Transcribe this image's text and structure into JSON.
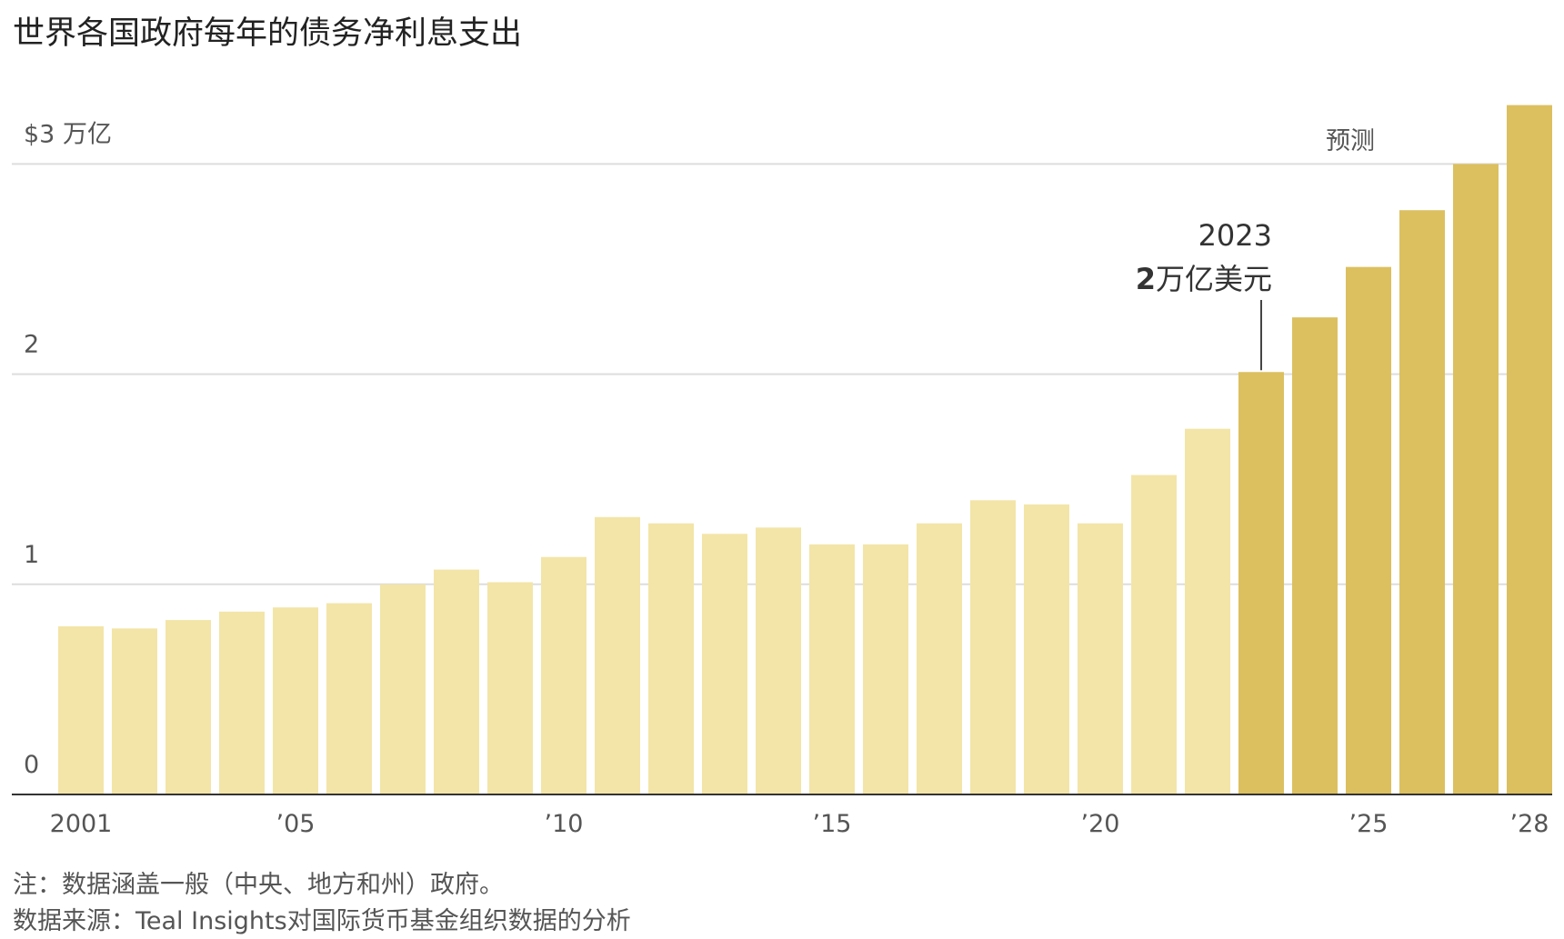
{
  "chart_data": {
    "type": "bar",
    "title": "世界各国政府每年的债务净利息支出",
    "categories": [
      "2001",
      null,
      null,
      null,
      "’05",
      null,
      null,
      null,
      null,
      "’10",
      null,
      null,
      null,
      null,
      "’15",
      null,
      null,
      null,
      null,
      "’20",
      null,
      null,
      null,
      null,
      "’25",
      null,
      null,
      "’28"
    ],
    "values": [
      0.8,
      0.79,
      0.83,
      0.87,
      0.89,
      0.91,
      1.0,
      1.07,
      1.01,
      1.13,
      1.32,
      1.29,
      1.24,
      1.27,
      1.19,
      1.19,
      1.29,
      1.4,
      1.38,
      1.29,
      1.52,
      1.74,
      2.01,
      2.27,
      2.51,
      2.78,
      3.0,
      3.28
    ],
    "colors": [
      "#f3e5a8",
      "#f3e5a8",
      "#f3e5a8",
      "#f3e5a8",
      "#f3e5a8",
      "#f3e5a8",
      "#f3e5a8",
      "#f3e5a8",
      "#f3e5a8",
      "#f3e5a8",
      "#f3e5a8",
      "#f3e5a8",
      "#f3e5a8",
      "#f3e5a8",
      "#f3e5a8",
      "#f3e5a8",
      "#f3e5a8",
      "#f3e5a8",
      "#f3e5a8",
      "#f3e5a8",
      "#f3e5a8",
      "#f3e5a8",
      "#dcc060",
      "#dcc060",
      "#dcc060",
      "#dcc060",
      "#dcc060",
      "#dcc060"
    ],
    "ylim": [
      0,
      3.3
    ],
    "yticks": [
      0,
      1,
      2,
      {
        "value": 3,
        "label": "$3 万亿"
      }
    ],
    "grid": true,
    "forecast_label": "预测",
    "annotation": {
      "year": "2023",
      "value_bold": "2",
      "value_unit": "万亿美元"
    },
    "notes": [
      "注：数据涵盖一般（中央、地方和州）政府。",
      "数据来源：Teal Insights对国际货币基金组织数据的分析"
    ]
  }
}
